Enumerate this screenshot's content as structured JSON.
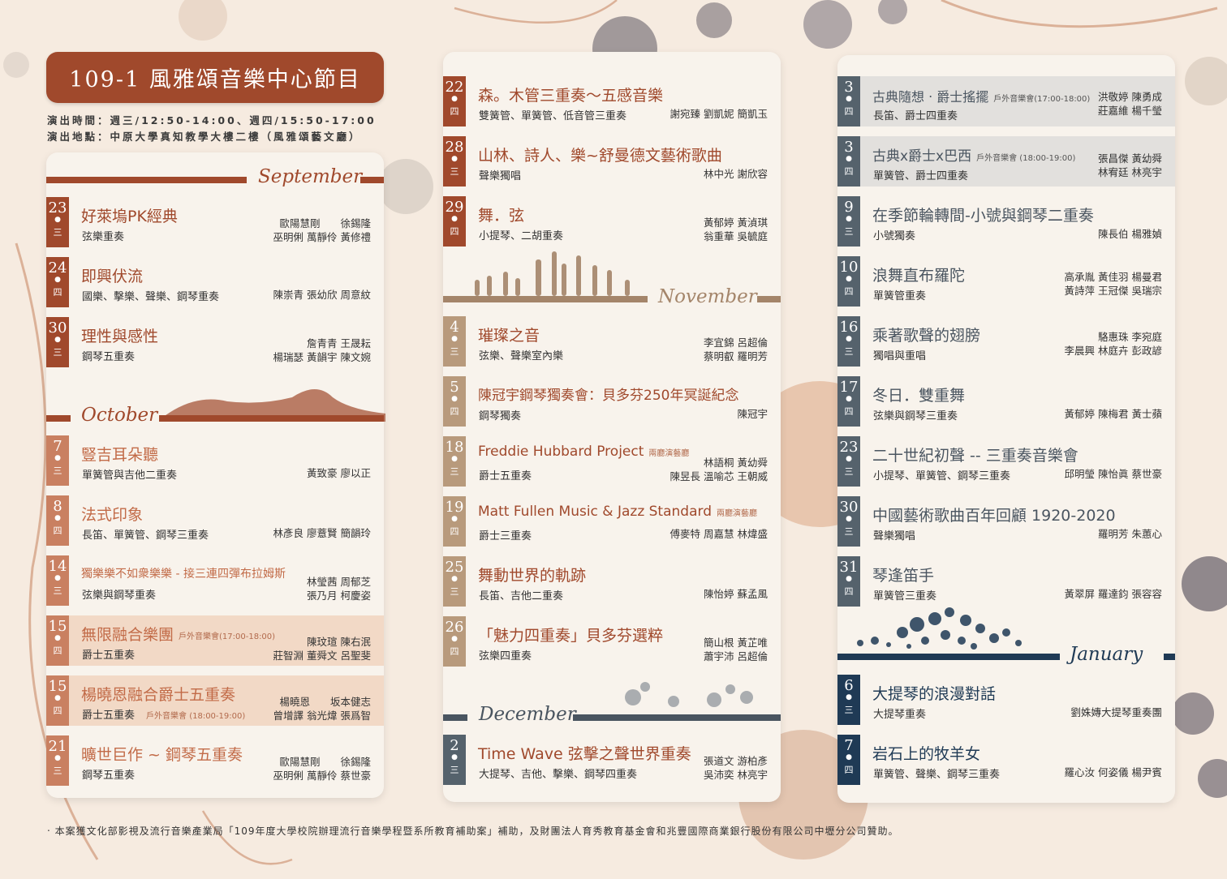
{
  "header": {
    "title": "109-1 風雅頌音樂中心節目",
    "time": "演出時間：週三/12:50-14:00、週四/15:50-17:00",
    "venue": "演出地點：中原大學真知教學大樓二樓（風雅頌藝文廳）"
  },
  "months": {
    "september": "September",
    "october": "October",
    "november": "November",
    "december": "December",
    "january": "January"
  },
  "colors": {
    "september": "#a0492c",
    "october": "#c98061",
    "november": "#b89a7c",
    "december": "#55626c",
    "january": "#1f3a55",
    "highlight": "#f2d9c6"
  },
  "col1": [
    {
      "day": "23",
      "wk": "三",
      "title": "好萊塢PK經典",
      "sub": "弦樂重奏",
      "people": "歐陽慧剛　　徐錫隆\n巫明俐 萬靜伶 黃修禮"
    },
    {
      "day": "24",
      "wk": "四",
      "title": "即興伏流",
      "sub": "國樂、擊樂、聲樂、鋼琴重奏",
      "people": "陳崇青 張幼欣 周意紋"
    },
    {
      "day": "30",
      "wk": "三",
      "title": "理性與感性",
      "sub": "鋼琴五重奏",
      "people": "詹青青 王晟耘\n楊瑞瑟 黃韻宇 陳文婉"
    },
    {
      "day": "7",
      "wk": "三",
      "title": "豎吉耳朵聽",
      "sub": "單簧管與吉他二重奏",
      "people": "黃致豪 廖以正"
    },
    {
      "day": "8",
      "wk": "四",
      "title": "法式印象",
      "sub": "長笛、單簧管、鋼琴三重奏",
      "people": "林彥良 廖薏賢 簡韻玲"
    },
    {
      "day": "14",
      "wk": "三",
      "title": "獨樂樂不如衆樂樂 - 接三連四彈布拉姆斯",
      "sub": "弦樂與鋼琴重奏",
      "people": "林瑩茜 周郁芝\n張乃月 柯慶姿"
    },
    {
      "day": "15",
      "wk": "四",
      "title": "無限融合樂團",
      "tag": "戶外音樂會(17:00-18:00)",
      "sub": "爵士五重奏",
      "people": "陳玟瑄 陳右泯\n莊智淵 董舜文 呂聖斐"
    },
    {
      "day": "15",
      "wk": "四",
      "title": "楊曉恩融合爵士五重奏",
      "sub": "爵士五重奏",
      "subtag": "戶外音樂會 (18:00-19:00)",
      "people": "楊曉恩　　坂本健志\n曾增譯 翁光煒 張爲智"
    },
    {
      "day": "21",
      "wk": "三",
      "title": "曠世巨作 ~ 鋼琴五重奏",
      "sub": "鋼琴五重奏",
      "people": "歐陽慧剛　　徐錫隆\n巫明俐 萬靜伶 蔡世豪"
    }
  ],
  "col2": [
    {
      "day": "22",
      "wk": "四",
      "title": "森。木管三重奏～五感音樂",
      "sub": "雙簧管、單簧管、低音管三重奏",
      "people": "謝宛臻 劉凱妮 簡凱玉"
    },
    {
      "day": "28",
      "wk": "三",
      "title": "山林、詩人、樂~舒曼德文藝術歌曲",
      "sub": "聲樂獨唱",
      "people": "林中光 謝欣容"
    },
    {
      "day": "29",
      "wk": "四",
      "title": "舞．弦",
      "sub": "小提琴、二胡重奏",
      "people": "黃郁婷 黃湞琪\n翁重華 吳毓庭"
    },
    {
      "day": "4",
      "wk": "三",
      "title": "璀璨之音",
      "sub": "弦樂、聲樂室內樂",
      "people": "李宜錦 呂超倫\n蔡明叡 羅明芳"
    },
    {
      "day": "5",
      "wk": "四",
      "title": "陳冠宇鋼琴獨奏會：貝多芬250年冥誕紀念",
      "sub": "鋼琴獨奏",
      "people": "陳冠宇"
    },
    {
      "day": "18",
      "wk": "三",
      "title": "Freddie Hubbard Project",
      "tag": "兩廳演藝廳",
      "sub": "爵士五重奏",
      "people": "林語桐 黃幼舜\n陳昱長 溫喻芯 王朝威"
    },
    {
      "day": "19",
      "wk": "四",
      "title": "Matt Fullen Music & Jazz Standard",
      "tag": "兩廳演藝廳",
      "sub": "爵士三重奏",
      "people": "傅麥特 周嘉慧 林煒盛"
    },
    {
      "day": "25",
      "wk": "三",
      "title": "舞動世界的軌跡",
      "sub": "長笛、吉他二重奏",
      "people": "陳怡婷 蘇孟風"
    },
    {
      "day": "26",
      "wk": "四",
      "title": "「魅力四重奏」貝多芬選粹",
      "sub": "弦樂四重奏",
      "people": "簡山根 黃芷唯\n蕭宇沛 呂超倫"
    },
    {
      "day": "2",
      "wk": "三",
      "title": "Time Wave 弦擊之聲世界重奏",
      "sub": "大提琴、吉他、擊樂、鋼琴四重奏",
      "people": "張道文 游柏彥\n吳沛奕 林亮宇"
    }
  ],
  "col3": [
    {
      "day": "3",
      "wk": "四",
      "title": "古典隨想 ‧ 爵士搖擺",
      "tag": "戶外音樂會(17:00-18:00)",
      "sub": "長笛、爵士四重奏",
      "people": "洪敬婷 陳勇成\n莊嘉維 楊千瑩"
    },
    {
      "day": "3",
      "wk": "四",
      "title": "古典x爵士x巴西",
      "tag": "戶外音樂會 (18:00-19:00)",
      "sub": "單簧管、爵士四重奏",
      "people": "張昌傑 黃幼舜\n林宥廷 林亮宇"
    },
    {
      "day": "9",
      "wk": "三",
      "title": "在季節輪轉間-小號與鋼琴二重奏",
      "sub": "小號獨奏",
      "people": "陳長伯 楊雅媜"
    },
    {
      "day": "10",
      "wk": "四",
      "title": "浪舞直布羅陀",
      "sub": "單簧管重奏",
      "people": "高承胤 黃佳羽 楊曼君\n黃詩萍 王冠傑 吳瑞宗"
    },
    {
      "day": "16",
      "wk": "三",
      "title": "乘著歌聲的翅膀",
      "sub": "獨唱與重唱",
      "people": "駱惠珠 李宛庭\n李晨興 林庭卉 彭政諺"
    },
    {
      "day": "17",
      "wk": "四",
      "title": "冬日．雙重舞",
      "sub": "弦樂與鋼琴三重奏",
      "people": "黃郁婷 陳梅君 黃士蘋"
    },
    {
      "day": "23",
      "wk": "三",
      "title": "二十世紀初聲 -- 三重奏音樂會",
      "sub": "小提琴、單簧管、鋼琴三重奏",
      "people": "邱明瑩 陳怡眞 蔡世豪"
    },
    {
      "day": "30",
      "wk": "三",
      "title": "中國藝術歌曲百年回顧 1920-2020",
      "sub": "聲樂獨唱",
      "people": "羅明芳 朱蕙心"
    },
    {
      "day": "31",
      "wk": "四",
      "title": "琴逢笛手",
      "sub": "單簧管三重奏",
      "people": "黃翠屏 羅達鈞 張容容"
    },
    {
      "day": "6",
      "wk": "三",
      "title": "大提琴的浪漫對話",
      "sub": "大提琴重奏",
      "people": "劉姝嫥大提琴重奏團"
    },
    {
      "day": "7",
      "wk": "四",
      "title": "岩石上的牧羊女",
      "sub": "單簧管、聲樂、鋼琴三重奏",
      "people": "羅心汝 何姿儀 楊尹賓"
    }
  ],
  "footer": "‧ 本案獲文化部影視及流行音樂產業局「109年度大學校院辦理流行音樂學程暨系所教育補助案」補助，及財團法人育秀教育基金會和兆豐國際商業銀行股份有限公司中壢分公司贊助。"
}
